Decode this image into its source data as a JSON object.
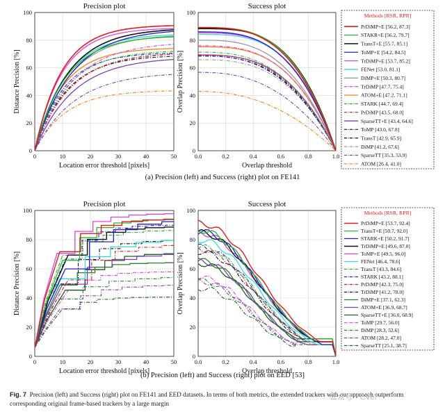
{
  "figure": {
    "label": "Fig. 7",
    "caption": "Precision (left) and Success (right) plot on FE141 and EED datasets. In terms of both metrics, the extended trackers with our approach outperform corresponding original frame-based trackers by a large margin",
    "watermark": "公众号 · CVer"
  },
  "chart_data": [
    {
      "type": "line",
      "panel": "a-left",
      "title": "Precision plot",
      "xlabel": "Location error threshold [pixels]",
      "ylabel": "Distance Precision [%]",
      "xlim": [
        0,
        50
      ],
      "ylim": [
        0,
        100
      ],
      "xticks": [
        0,
        10,
        20,
        30,
        40,
        50
      ],
      "yticks": [
        0,
        20,
        40,
        60,
        80,
        100
      ],
      "grid": true,
      "subcaption": "(a) Precision (left) and Success (right) plot on FE141",
      "legend_ref": "a"
    },
    {
      "type": "line",
      "panel": "a-right",
      "title": "Success plot",
      "xlabel": "Overlap threshold",
      "ylabel": "Overlap Precision [%]",
      "xlim": [
        0,
        1
      ],
      "ylim": [
        0,
        100
      ],
      "xticks": [
        "0.0",
        "0.2",
        "0.4",
        "0.6",
        "0.8",
        "1.0"
      ],
      "yticks": [
        0,
        20,
        40,
        60,
        80,
        100
      ],
      "grid": true,
      "legend_ref": "a"
    },
    {
      "type": "line",
      "panel": "b-left",
      "title": "Precision plot",
      "xlabel": "Location error threshold [pixels]",
      "ylabel": "Distance Precision [%]",
      "xlim": [
        0,
        50
      ],
      "ylim": [
        0,
        100
      ],
      "xticks": [
        0,
        10,
        20,
        30,
        40,
        50
      ],
      "yticks": [
        0,
        20,
        40,
        60,
        80,
        100
      ],
      "grid": true,
      "subcaption": "(b) Precision (left) and Success (right) plot on EED [53]",
      "legend_ref": "b"
    },
    {
      "type": "line",
      "panel": "b-right",
      "title": "Success plot",
      "xlabel": "Overlap threshold",
      "ylabel": "Overlap Precision [%]",
      "xlim": [
        0,
        1
      ],
      "ylim": [
        0,
        100
      ],
      "xticks": [
        "0.0",
        "0.2",
        "0.4",
        "0.6",
        "0.8",
        "1.0"
      ],
      "yticks": [
        0,
        20,
        40,
        60,
        80,
        100
      ],
      "grid": true,
      "legend_ref": "b"
    }
  ],
  "legends": {
    "a": {
      "title": "Methods [RSR, RPR]",
      "series": [
        {
          "name": "PrDiMP+E",
          "rsr": 56.2,
          "rpr": 87.3,
          "color": "#e41a1c",
          "dash": "solid",
          "lw": 1.6
        },
        {
          "name": "STAKR+E",
          "rsr": 56.2,
          "rpr": 79.7,
          "color": "#22bb22",
          "dash": "solid",
          "lw": 1.3
        },
        {
          "name": "TransT+E",
          "rsr": 55.7,
          "rpr": 85.1,
          "color": "#111111",
          "dash": "solid",
          "lw": 1.6
        },
        {
          "name": "ToMP+E",
          "rsr": 54.2,
          "rpr": 84.5,
          "color": "#1f1fd0",
          "dash": "solid",
          "lw": 1.3
        },
        {
          "name": "TrDiMP+E",
          "rsr": 53.7,
          "rpr": 85.2,
          "color": "#e040e0",
          "dash": "solid",
          "lw": 1.3
        },
        {
          "name": "FENet",
          "rsr": 53.0,
          "rpr": 81.1,
          "color": "#33dddd",
          "dash": "solid",
          "lw": 1.3
        },
        {
          "name": "DiMP+E",
          "rsr": 50.3,
          "rpr": 80.7,
          "color": "#9a9a9a",
          "dash": "solid",
          "lw": 1.3
        },
        {
          "name": "TrDiMP",
          "rsr": 47.7,
          "rpr": 75.4,
          "color": "#e040e0",
          "dash": "dashdot",
          "lw": 1.1
        },
        {
          "name": "ATOM+E",
          "rsr": 47.2,
          "rpr": 71.1,
          "color": "#ff7f0e",
          "dash": "solid",
          "lw": 1.3
        },
        {
          "name": "STARK",
          "rsr": 44.7,
          "rpr": 69.4,
          "color": "#22bb22",
          "dash": "dashdot",
          "lw": 1.1
        },
        {
          "name": "PrDiMP",
          "rsr": 43.5,
          "rpr": 68.0,
          "color": "#e41a1c",
          "dash": "dashdot",
          "lw": 1.1
        },
        {
          "name": "SparseTT+E",
          "rsr": 43.4,
          "rpr": 64.6,
          "color": "#7b3fbf",
          "dash": "solid",
          "lw": 1.3
        },
        {
          "name": "ToMP",
          "rsr": 43.0,
          "rpr": 67.8,
          "color": "#1f1fd0",
          "dash": "dashdot",
          "lw": 1.1
        },
        {
          "name": "TransT",
          "rsr": 42.9,
          "rpr": 65.9,
          "color": "#111111",
          "dash": "dashdot",
          "lw": 1.1
        },
        {
          "name": "DiMP",
          "rsr": 41.2,
          "rpr": 67.6,
          "color": "#9a9a9a",
          "dash": "dashdot",
          "lw": 1.1
        },
        {
          "name": "SparseTT",
          "rsr": 35.3,
          "rpr": 53.9,
          "color": "#7b3fbf",
          "dash": "dashdot",
          "lw": 1.1
        },
        {
          "name": "ATOM",
          "rsr": 26.4,
          "rpr": 41.0,
          "color": "#ff7f0e",
          "dash": "dashdot",
          "lw": 1.1
        }
      ]
    },
    "b": {
      "title": "Methods [RSR, RPR]",
      "series": [
        {
          "name": "PrDiMP+E",
          "rsr": 53.7,
          "rpr": 92.4,
          "color": "#e41a1c",
          "dash": "solid",
          "lw": 1.4
        },
        {
          "name": "TransT+E",
          "rsr": 50.7,
          "rpr": 92.0,
          "color": "#22bb22",
          "dash": "solid",
          "lw": 1.3
        },
        {
          "name": "STARK+E",
          "rsr": 50.2,
          "rpr": 91.7,
          "color": "#1f1fd0",
          "dash": "solid",
          "lw": 1.3
        },
        {
          "name": "TrDiMP+E",
          "rsr": 49.6,
          "rpr": 87.0,
          "color": "#111111",
          "dash": "solid",
          "lw": 1.4
        },
        {
          "name": "ToMP+E",
          "rsr": 49.5,
          "rpr": 96.0,
          "color": "#e040e0",
          "dash": "solid",
          "lw": 1.3
        },
        {
          "name": "FENet",
          "rsr": 46.4,
          "rpr": 78.6,
          "color": "#33dddd",
          "dash": "solid",
          "lw": 1.3
        },
        {
          "name": "TransT",
          "rsr": 43.3,
          "rpr": 84.6,
          "color": "#22bb22",
          "dash": "dashdot",
          "lw": 1.1
        },
        {
          "name": "STARK",
          "rsr": 43.2,
          "rpr": 88.1,
          "color": "#1f1fd0",
          "dash": "dashdot",
          "lw": 1.1
        },
        {
          "name": "PrDiMP",
          "rsr": 42.3,
          "rpr": 75.0,
          "color": "#e41a1c",
          "dash": "dashdot",
          "lw": 1.1
        },
        {
          "name": "TrDiMP",
          "rsr": 41.2,
          "rpr": 78.0,
          "color": "#111111",
          "dash": "dashdot",
          "lw": 1.1
        },
        {
          "name": "DiMP+E",
          "rsr": 37.1,
          "rpr": 62.3,
          "color": "#2e7d32",
          "dash": "solid",
          "lw": 1.3
        },
        {
          "name": "ATOM+E",
          "rsr": 36.9,
          "rpr": 68.7,
          "color": "#7b3fbf",
          "dash": "solid",
          "lw": 1.3
        },
        {
          "name": "SparseTT+E",
          "rsr": 36.0,
          "rpr": 68.9,
          "color": "#1b5e20",
          "dash": "solid",
          "lw": 1.3
        },
        {
          "name": "ToMP",
          "rsr": 29.7,
          "rpr": 56.0,
          "color": "#e040e0",
          "dash": "dashdot",
          "lw": 1.1
        },
        {
          "name": "DiMP",
          "rsr": 28.3,
          "rpr": 52.6,
          "color": "#2e7d32",
          "dash": "dashdot",
          "lw": 1.1
        },
        {
          "name": "ATOM",
          "rsr": 28.2,
          "rpr": 47.0,
          "color": "#7b3fbf",
          "dash": "dashdot",
          "lw": 1.1
        },
        {
          "name": "SparseTT",
          "rsr": 25.1,
          "rpr": 38.7,
          "color": "#1b5e20",
          "dash": "dashdot",
          "lw": 1.1
        }
      ]
    }
  }
}
